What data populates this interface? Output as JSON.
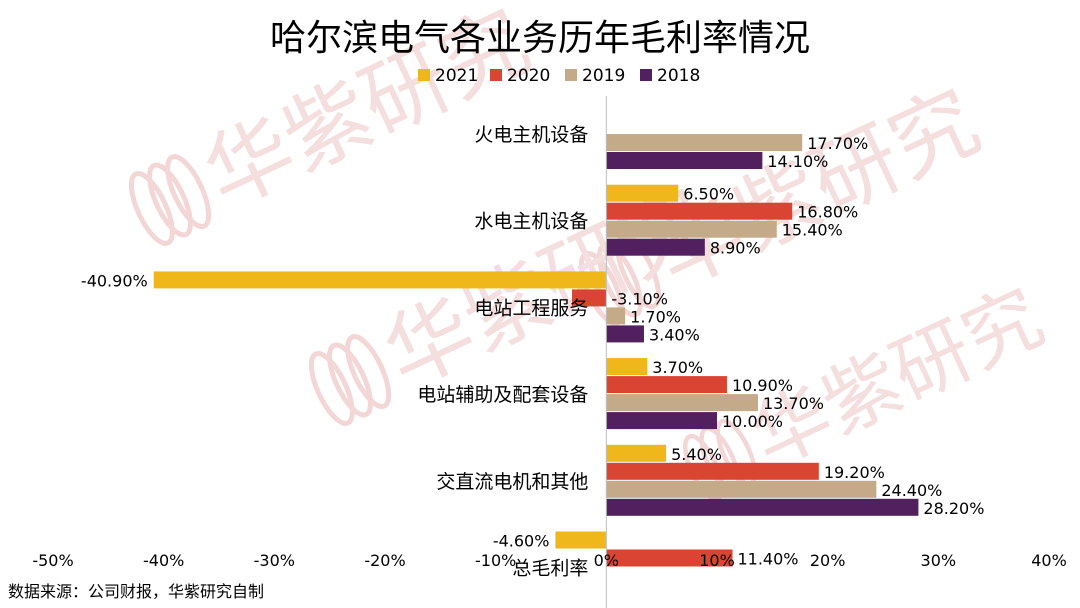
{
  "chart_data": {
    "type": "bar",
    "orientation": "horizontal",
    "title": "哈尔滨电气各业务历年毛利率情况",
    "categories": [
      "火电主机设备",
      "水电主机设备",
      "电站工程服务",
      "电站辅助及配套设备",
      "交直流电机和其他",
      "总毛利率"
    ],
    "series": [
      {
        "name": "2021",
        "color": "#F0B71B",
        "values": [
          null,
          6.5,
          -40.9,
          3.7,
          5.4,
          -4.6
        ],
        "labels": [
          null,
          "6.50%",
          "-40.90%",
          "3.70%",
          "5.40%",
          "-4.60%"
        ]
      },
      {
        "name": "2020",
        "color": "#D94532",
        "values": [
          null,
          16.8,
          -3.1,
          10.9,
          19.2,
          11.4
        ],
        "labels": [
          null,
          "16.80%",
          "-3.10%",
          "10.90%",
          "19.20%",
          "11.40%"
        ]
      },
      {
        "name": "2019",
        "color": "#C4AA88",
        "values": [
          17.7,
          15.4,
          1.7,
          13.7,
          24.4,
          null
        ],
        "labels": [
          "17.70%",
          "15.40%",
          "1.70%",
          "13.70%",
          "24.40%",
          null
        ]
      },
      {
        "name": "2018",
        "color": "#52205E",
        "values": [
          14.1,
          8.9,
          3.4,
          10.0,
          28.2,
          null
        ],
        "labels": [
          "14.10%",
          "8.90%",
          "3.40%",
          "10.00%",
          "28.20%",
          null
        ]
      }
    ],
    "xlim": [
      -50,
      40
    ],
    "xticks": [
      -50,
      -40,
      -30,
      -20,
      -10,
      0,
      10,
      20,
      30,
      40
    ],
    "xtick_labels": [
      "-50%",
      "-40%",
      "-30%",
      "-20%",
      "-10%",
      "0%",
      "10%",
      "20%",
      "30%",
      "40%"
    ],
    "legend_position": "top-center",
    "grid": false,
    "source": "数据来源：公司财报，华紫研究自制",
    "watermark": "华紫研究"
  }
}
